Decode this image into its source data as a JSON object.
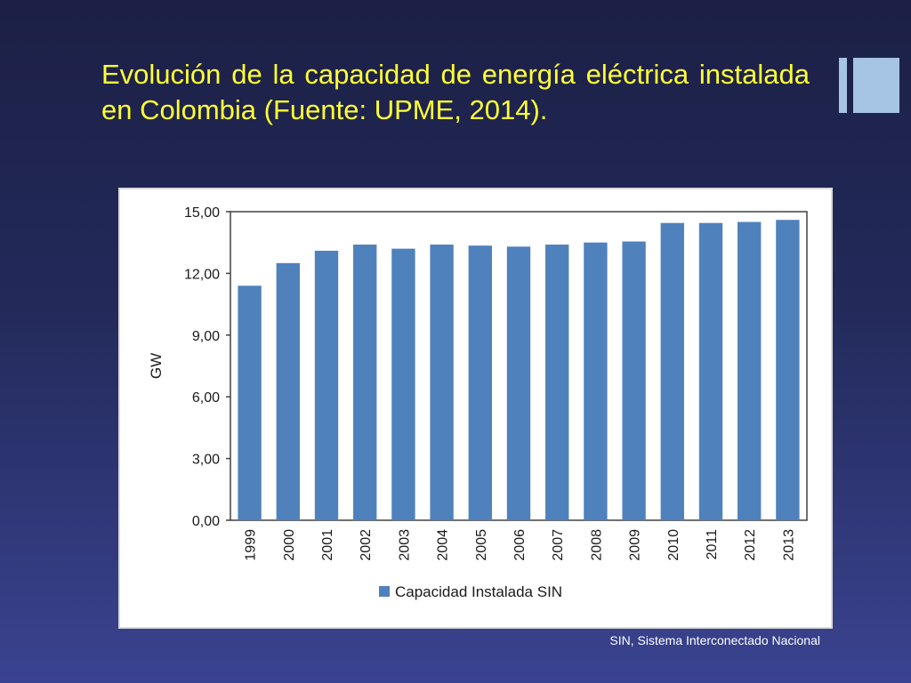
{
  "slide": {
    "title": "Evolución de la capacidad de energía eléctrica instalada en Colombia (Fuente: UPME, 2014).",
    "footnote": "SIN, Sistema Interconectado Nacional",
    "decor_color": "#a6c4e4"
  },
  "chart_data": {
    "type": "bar",
    "title": "",
    "xlabel": "",
    "ylabel": "GW",
    "ylim": [
      0,
      15
    ],
    "yticks": [
      0,
      3,
      6,
      9,
      12,
      15
    ],
    "ytick_labels": [
      "0,00",
      "3,00",
      "6,00",
      "9,00",
      "12,00",
      "15,00"
    ],
    "categories": [
      "1999",
      "2000",
      "2001",
      "2002",
      "2003",
      "2004",
      "2005",
      "2006",
      "2007",
      "2008",
      "2009",
      "2010",
      "2011",
      "2012",
      "2013"
    ],
    "series": [
      {
        "name": "Capacidad Instalada SIN",
        "color": "#4f81bd",
        "values": [
          11.4,
          12.5,
          13.1,
          13.4,
          13.2,
          13.4,
          13.35,
          13.3,
          13.4,
          13.5,
          13.55,
          14.45,
          14.45,
          14.5,
          14.6
        ]
      }
    ],
    "grid": false,
    "legend": "bottom"
  }
}
